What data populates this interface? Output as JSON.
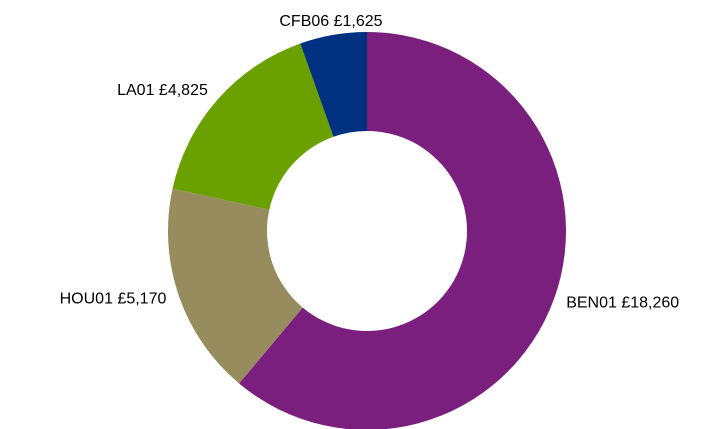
{
  "chart_data": {
    "type": "donut",
    "categories": [
      "BEN01",
      "HOU01",
      "LA01",
      "CFB06"
    ],
    "values": [
      18260,
      5170,
      4825,
      1625
    ],
    "value_labels": [
      "£18,260",
      "£5,170",
      "£4,825",
      "£1,625"
    ],
    "colors": [
      "#7b1f7e",
      "#968c5e",
      "#6aa000",
      "#003080"
    ]
  }
}
